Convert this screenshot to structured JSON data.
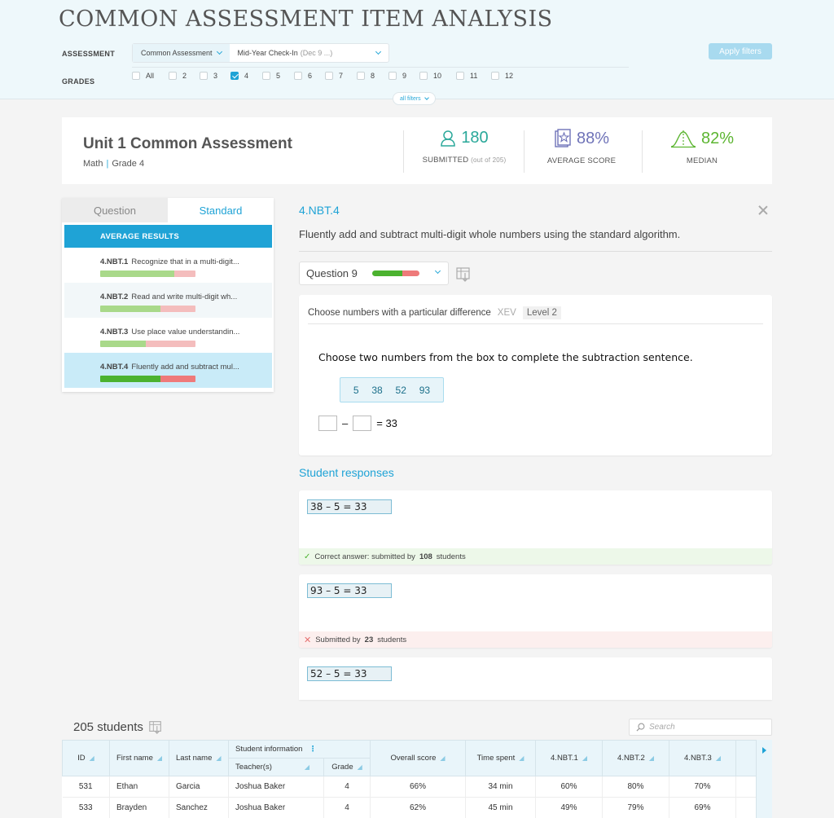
{
  "header": {
    "title": "COMMON ASSESSMENT ITEM ANALYSIS",
    "assessment_label": "ASSESSMENT",
    "assessment_type": "Common Assessment",
    "assessment_name": "Mid-Year Check-In",
    "assessment_date": "(Dec 9 ...)",
    "apply_label": "Apply filters",
    "grades_label": "GRADES",
    "grades": [
      {
        "label": "All",
        "checked": false
      },
      {
        "label": "2",
        "checked": false
      },
      {
        "label": "3",
        "checked": false
      },
      {
        "label": "4",
        "checked": true
      },
      {
        "label": "5",
        "checked": false
      },
      {
        "label": "6",
        "checked": false
      },
      {
        "label": "7",
        "checked": false
      },
      {
        "label": "8",
        "checked": false
      },
      {
        "label": "9",
        "checked": false
      },
      {
        "label": "10",
        "checked": false
      },
      {
        "label": "11",
        "checked": false
      },
      {
        "label": "12",
        "checked": false
      }
    ],
    "all_filters_label": "all filters"
  },
  "summary": {
    "title": "Unit 1 Common Assessment",
    "subject": "Math",
    "grade": "Grade 4",
    "submitted_value": "180",
    "submitted_label": "SUBMITTED",
    "submitted_note": "(out of 205)",
    "average_value": "88%",
    "average_label": "AVERAGE SCORE",
    "median_value": "82%",
    "median_label": "MEDIAN",
    "colors": {
      "submitted": "#2aa89a",
      "average": "#6f73b8",
      "median": "#5cb531"
    }
  },
  "left_panel": {
    "tab_question": "Question",
    "tab_standard": "Standard",
    "average_results": "AVERAGE RESULTS",
    "standards": [
      {
        "code": "4.NBT.1",
        "text": "Recognize that in a multi-digit...",
        "correct_fraction": 0.78
      },
      {
        "code": "4.NBT.2",
        "text": "Read and write multi-digit wh...",
        "correct_fraction": 0.63
      },
      {
        "code": "4.NBT.3",
        "text": "Use place value understandin...",
        "correct_fraction": 0.48
      },
      {
        "code": "4.NBT.4",
        "text": "Fluently add and subtract mul...",
        "correct_fraction": 0.63
      }
    ]
  },
  "detail": {
    "code": "4.NBT.4",
    "description": "Fluently add and subtract multi-digit whole numbers using the standard algorithm.",
    "question_label": "Question 9",
    "question_correct_fraction": 0.64,
    "card_title": "Choose numbers with a particular difference",
    "card_tag": "XEV",
    "card_level": "Level 2",
    "prompt": "Choose two numbers from the box to complete the subtraction sentence.",
    "numbers": [
      "5",
      "38",
      "52",
      "93"
    ],
    "minus": "–",
    "equals": "= 33",
    "responses_title": "Student responses",
    "responses": [
      {
        "answer": "38 – 5 = 33",
        "foot_prefix": "Correct answer: submitted by",
        "count": "108",
        "foot_suffix": "students"
      },
      {
        "answer": "93 – 5 = 33",
        "foot_prefix": "Submitted by",
        "count": "23",
        "foot_suffix": "students"
      },
      {
        "answer": "52 – 5 = 33"
      }
    ]
  },
  "table": {
    "title": "205 students",
    "search_placeholder": "Search",
    "headers": {
      "id": "ID",
      "first": "First name",
      "last": "Last name",
      "student_info": "Student information",
      "teacher": "Teacher(s)",
      "grade": "Grade",
      "overall": "Overall score",
      "time": "Time spent",
      "s1": "4.NBT.1",
      "s2": "4.NBT.2",
      "s3": "4.NBT.3"
    },
    "rows": [
      {
        "id": "531",
        "first": "Ethan",
        "last": "Garcia",
        "teacher": "Joshua Baker",
        "grade": "4",
        "overall": "66%",
        "time": "34 min",
        "s1": "60%",
        "s2": "80%",
        "s3": "70%"
      },
      {
        "id": "533",
        "first": "Brayden",
        "last": "Sanchez",
        "teacher": "Joshua Baker",
        "grade": "4",
        "overall": "62%",
        "time": "45 min",
        "s1": "49%",
        "s2": "79%",
        "s3": "69%"
      }
    ]
  }
}
